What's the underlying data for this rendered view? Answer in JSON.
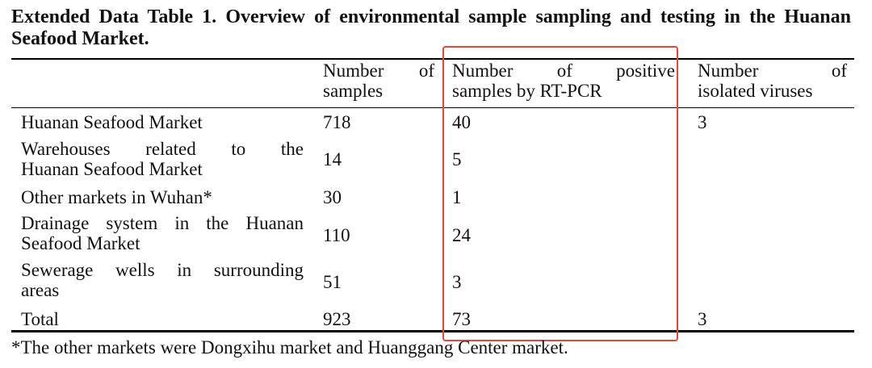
{
  "caption": "Extended Data Table 1. Overview of environmental sample sampling and testing in the Huanan Seafood Market.",
  "header": {
    "col1": {
      "line1": "Number of",
      "line2": "samples"
    },
    "col2": {
      "line1": "Number of positive",
      "line2": "samples by RT-PCR"
    },
    "col3": {
      "line1": "Number of",
      "line2": "isolated viruses"
    }
  },
  "rows": [
    {
      "name_line1": "Huanan Seafood Market",
      "name_line2": "",
      "samples": "718",
      "positive": "40",
      "isolated": "3"
    },
    {
      "name_line1": "Warehouses related to the",
      "name_line2": "Huanan Seafood Market",
      "samples": "14",
      "positive": "5",
      "isolated": ""
    },
    {
      "name_line1": "Other markets in Wuhan*",
      "name_line2": "",
      "samples": "30",
      "positive": "1",
      "isolated": ""
    },
    {
      "name_line1": "Drainage system in the Huanan",
      "name_line2": "Seafood Market",
      "samples": "110",
      "positive": "24",
      "isolated": ""
    },
    {
      "name_line1": "Sewerage wells in surrounding",
      "name_line2": "areas",
      "samples": "51",
      "positive": "3",
      "isolated": ""
    },
    {
      "name_line1": "Total",
      "name_line2": "",
      "samples": "923",
      "positive": "73",
      "isolated": "3"
    }
  ],
  "footnote": "*The other markets were Dongxihu market and Huanggang Center market.",
  "colors": {
    "highlight_box": "#e8453c",
    "text": "#111111",
    "background": "#ffffff"
  }
}
